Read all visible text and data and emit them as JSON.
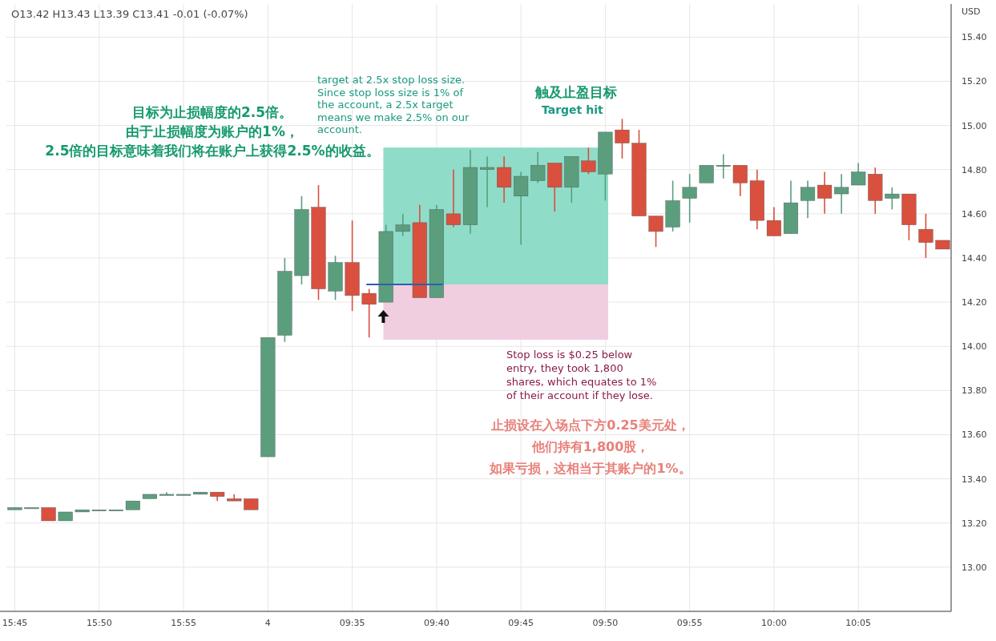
{
  "chart_data": {
    "type": "candlestick",
    "ylabel": "USD",
    "categories": [
      "15:45",
      null,
      null,
      null,
      null,
      "15:50",
      null,
      null,
      null,
      null,
      "15:55",
      null,
      null,
      null,
      null,
      "4",
      null,
      null,
      null,
      null,
      "09:35",
      null,
      null,
      null,
      null,
      "09:40",
      null,
      null,
      null,
      null,
      "09:45",
      null,
      null,
      null,
      null,
      "09:50",
      null,
      null,
      null,
      null,
      "09:55",
      null,
      null,
      null,
      null,
      "10:00",
      null,
      null,
      null,
      null,
      "10:05",
      null,
      null,
      null,
      null,
      null
    ],
    "ohlc": [
      [
        13.26,
        13.27,
        13.26,
        13.27
      ],
      [
        13.27,
        13.27,
        13.27,
        13.27
      ],
      [
        13.27,
        13.27,
        13.21,
        13.21
      ],
      [
        13.21,
        13.25,
        13.21,
        13.25
      ],
      [
        13.25,
        13.26,
        13.25,
        13.26
      ],
      [
        13.26,
        13.26,
        13.26,
        13.26
      ],
      [
        13.26,
        13.26,
        13.26,
        13.26
      ],
      [
        13.26,
        13.3,
        13.26,
        13.3
      ],
      [
        13.31,
        13.33,
        13.31,
        13.33
      ],
      [
        13.33,
        13.34,
        13.33,
        13.33
      ],
      [
        13.33,
        13.33,
        13.33,
        13.33
      ],
      [
        13.33,
        13.34,
        13.33,
        13.34
      ],
      [
        13.34,
        13.34,
        13.3,
        13.32
      ],
      [
        13.31,
        13.33,
        13.3,
        13.3
      ],
      [
        13.31,
        13.31,
        13.26,
        13.26
      ],
      [
        13.5,
        14.04,
        13.5,
        14.04
      ],
      [
        14.05,
        14.4,
        14.02,
        14.34
      ],
      [
        14.32,
        14.68,
        14.28,
        14.62
      ],
      [
        14.63,
        14.73,
        14.21,
        14.26
      ],
      [
        14.25,
        14.41,
        14.21,
        14.38
      ],
      [
        14.38,
        14.57,
        14.16,
        14.23
      ],
      [
        14.24,
        14.26,
        14.04,
        14.19
      ],
      [
        14.2,
        14.55,
        14.2,
        14.52
      ],
      [
        14.52,
        14.6,
        14.5,
        14.55
      ],
      [
        14.56,
        14.64,
        14.22,
        14.22
      ],
      [
        14.22,
        14.64,
        14.22,
        14.62
      ],
      [
        14.6,
        14.8,
        14.54,
        14.55
      ],
      [
        14.55,
        14.89,
        14.51,
        14.81
      ],
      [
        14.8,
        14.86,
        14.63,
        14.81
      ],
      [
        14.81,
        14.86,
        14.65,
        14.72
      ],
      [
        14.68,
        14.79,
        14.46,
        14.77
      ],
      [
        14.75,
        14.88,
        14.74,
        14.82
      ],
      [
        14.83,
        14.83,
        14.61,
        14.72
      ],
      [
        14.72,
        14.86,
        14.65,
        14.86
      ],
      [
        14.84,
        14.9,
        14.78,
        14.79
      ],
      [
        14.78,
        14.97,
        14.66,
        14.97
      ],
      [
        14.98,
        15.03,
        14.85,
        14.92
      ],
      [
        14.92,
        14.98,
        14.59,
        14.59
      ],
      [
        14.59,
        14.59,
        14.45,
        14.52
      ],
      [
        14.54,
        14.75,
        14.52,
        14.66
      ],
      [
        14.67,
        14.78,
        14.56,
        14.72
      ],
      [
        14.74,
        14.82,
        14.74,
        14.82
      ],
      [
        14.82,
        14.87,
        14.76,
        14.82
      ],
      [
        14.82,
        14.82,
        14.68,
        14.74
      ],
      [
        14.75,
        14.8,
        14.53,
        14.57
      ],
      [
        14.57,
        14.63,
        14.5,
        14.5
      ],
      [
        14.51,
        14.75,
        14.51,
        14.65
      ],
      [
        14.66,
        14.75,
        14.58,
        14.72
      ],
      [
        14.73,
        14.79,
        14.6,
        14.67
      ],
      [
        14.69,
        14.78,
        14.6,
        14.72
      ],
      [
        14.73,
        14.83,
        14.73,
        14.79
      ],
      [
        14.78,
        14.81,
        14.6,
        14.66
      ],
      [
        14.67,
        14.72,
        14.62,
        14.69
      ],
      [
        14.69,
        14.69,
        14.48,
        14.55
      ],
      [
        14.53,
        14.6,
        14.4,
        14.47
      ],
      [
        14.48,
        14.48,
        14.44,
        14.44
      ]
    ],
    "colors": [
      "#5a9e7e",
      "#5a9e7e",
      "#d9503e",
      "#5a9e7e",
      "#5a9e7e",
      "#5a9e7e",
      "#5a9e7e",
      "#5a9e7e",
      "#5a9e7e",
      "#5a9e7e",
      "#5a9e7e",
      "#5a9e7e",
      "#d9503e",
      "#d9503e",
      "#d9503e",
      "#5a9e7e",
      "#5a9e7e",
      "#5a9e7e",
      "#d9503e",
      "#5a9e7e",
      "#d9503e",
      "#d9503e",
      "#5a9e7e",
      "#5a9e7e",
      "#d9503e",
      "#5a9e7e",
      "#d9503e",
      "#5a9e7e",
      "#5a9e7e",
      "#d9503e",
      "#5a9e7e",
      "#5a9e7e",
      "#d9503e",
      "#5a9e7e",
      "#d9503e",
      "#5a9e7e",
      "#d9503e",
      "#d9503e",
      "#d9503e",
      "#5a9e7e",
      "#5a9e7e",
      "#5a9e7e",
      "#5a9e7e",
      "#d9503e",
      "#d9503e",
      "#d9503e",
      "#5a9e7e",
      "#5a9e7e",
      "#d9503e",
      "#5a9e7e",
      "#5a9e7e",
      "#d9503e",
      "#5a9e7e",
      "#d9503e",
      "#d9503e",
      "#d9503e"
    ],
    "ylim": [
      12.8,
      15.55
    ],
    "yticks": [
      {
        "value": 13.0,
        "label": "13.00"
      },
      {
        "value": 13.2,
        "label": "13.20"
      },
      {
        "value": 13.4,
        "label": "13.40"
      },
      {
        "value": 13.6,
        "label": "13.60"
      },
      {
        "value": 13.8,
        "label": "13.80"
      },
      {
        "value": 14.0,
        "label": "14.00"
      },
      {
        "value": 14.2,
        "label": "14.20"
      },
      {
        "value": 14.4,
        "label": "14.40"
      },
      {
        "value": 14.6,
        "label": "14.60"
      },
      {
        "value": 14.8,
        "label": "14.80"
      },
      {
        "value": 15.0,
        "label": "15.00"
      },
      {
        "value": 15.2,
        "label": "15.20"
      },
      {
        "value": 15.4,
        "label": "15.40"
      }
    ],
    "grid": true,
    "bands": [
      {
        "axis": "y",
        "from": 14.28,
        "to": 14.9,
        "color": "#8fdcc9"
      },
      {
        "axis": "y",
        "from": 14.03,
        "to": 14.28,
        "color": "#f1cde0"
      }
    ],
    "ref_lines": [
      {
        "axis": "y",
        "value": 14.28,
        "color": "#2c5fb0"
      }
    ],
    "annotations": [
      "O13.42 H13.43 L13.39 C13.41 -0.01 (-0.07%)",
      "目标为止损幅度的2.5倍。由于止损幅度为账户的1%，2.5倍的目标意味着我们将在账户上获得2.5%的收益。",
      "target at 2.5x stop loss size.\nSince stop loss size is 1% of\nthe account, a 2.5x target\nmeans we make 2.5% on our\naccount.",
      "触及止盈目标",
      "Target hit",
      "Stop loss is $0.25 below\nentry, they took 1,800\nshares, which equates to 1%\nof their account if they lose.",
      "止损设在入场点下方0.25美元处，他们持有1,800股，如果亏损，这相当于其账户的1%。"
    ]
  }
}
